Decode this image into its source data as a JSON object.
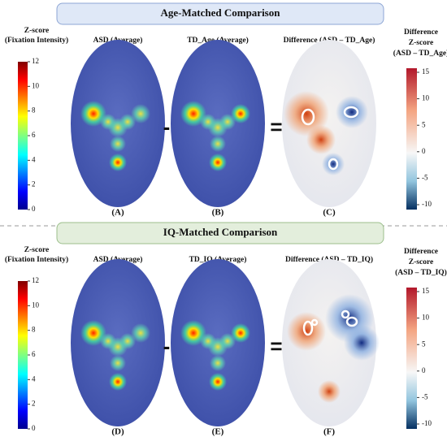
{
  "sections": [
    {
      "banner": "Age-Matched Comparison",
      "left_colorbar": {
        "title": [
          "Z-score",
          "(Fixation Intensity)"
        ],
        "ticks": [
          0,
          2,
          4,
          6,
          8,
          10,
          12
        ]
      },
      "panels": [
        {
          "title": "ASD (Average)",
          "label": "(A)"
        },
        {
          "title": "TD_Age (Average)",
          "label": "(B)"
        },
        {
          "title": "Difference (ASD – TD_Age)",
          "label": "(C)"
        }
      ],
      "operators": [
        "-",
        "="
      ],
      "right_colorbar": {
        "title": [
          "Difference",
          "Z-score",
          "(ASD – TD_Age)"
        ],
        "ticks": [
          15,
          10,
          5,
          0,
          -5,
          -10
        ]
      }
    },
    {
      "banner": "IQ-Matched Comparison",
      "left_colorbar": {
        "title": [
          "Z-score",
          "(Fixation Intensity)"
        ],
        "ticks": [
          0,
          2,
          4,
          6,
          8,
          10,
          12
        ]
      },
      "panels": [
        {
          "title": "ASD (Average)",
          "label": "(D)"
        },
        {
          "title": "TD_IQ (Average)",
          "label": "(E)"
        },
        {
          "title": "Difference (ASD – TD_IQ)",
          "label": "(F)"
        }
      ],
      "operators": [
        "-",
        "="
      ],
      "right_colorbar": {
        "title": [
          "Difference",
          "Z-score",
          "(ASD – TD_IQ)"
        ],
        "ticks": [
          15,
          10,
          5,
          0,
          -5,
          -10
        ]
      }
    }
  ]
}
